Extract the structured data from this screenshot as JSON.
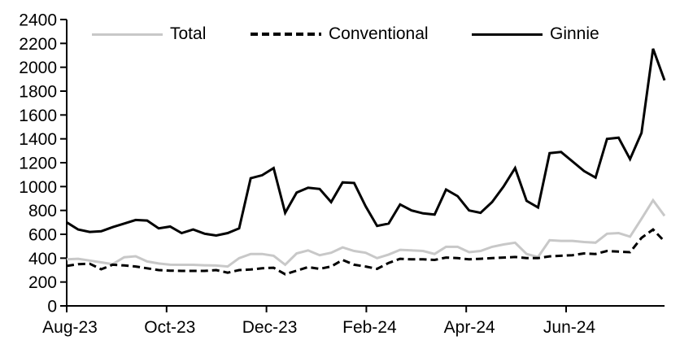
{
  "legend": [
    {
      "label": "Total",
      "swatch": "solid-gray",
      "color": "#c8c8c8",
      "dash": null
    },
    {
      "label": "Conventional",
      "swatch": "dashed-black",
      "color": "#000000",
      "dash": "9 5"
    },
    {
      "label": "Ginnie",
      "swatch": "solid-black",
      "color": "#000000",
      "dash": null
    }
  ],
  "chart_data": {
    "type": "line",
    "title": "",
    "xlabel": "",
    "ylabel": "",
    "ylim": [
      0,
      2400
    ],
    "y_ticks": [
      0,
      200,
      400,
      600,
      800,
      1000,
      1200,
      1400,
      1600,
      1800,
      2000,
      2200,
      2400
    ],
    "x_tick_labels": [
      "Aug-23",
      "Oct-23",
      "Dec-23",
      "Feb-24",
      "Apr-24",
      "Jun-24"
    ],
    "x_unit": "weekly observations, Aug-2023 through early Aug-2024 (53 points)",
    "grid": false,
    "legend_position": "top",
    "series": [
      {
        "name": "Total",
        "color": "#c8c8c8",
        "dash": null,
        "width": 3,
        "values": [
          390,
          395,
          380,
          365,
          350,
          408,
          416,
          372,
          355,
          345,
          344,
          344,
          340,
          338,
          330,
          400,
          435,
          435,
          420,
          345,
          440,
          465,
          425,
          445,
          490,
          460,
          445,
          400,
          430,
          470,
          465,
          460,
          435,
          495,
          495,
          450,
          460,
          495,
          515,
          530,
          435,
          410,
          550,
          545,
          545,
          535,
          530,
          605,
          610,
          580,
          730,
          885,
          755
        ]
      },
      {
        "name": "Conventional",
        "color": "#000000",
        "dash": "9 5",
        "width": 3,
        "values": [
          335,
          350,
          353,
          307,
          345,
          339,
          330,
          315,
          300,
          295,
          293,
          293,
          293,
          300,
          278,
          300,
          305,
          315,
          320,
          265,
          295,
          325,
          310,
          330,
          385,
          345,
          330,
          310,
          360,
          395,
          390,
          390,
          385,
          405,
          400,
          390,
          395,
          400,
          405,
          410,
          400,
          400,
          415,
          420,
          425,
          440,
          435,
          460,
          455,
          450,
          570,
          640,
          540
        ]
      },
      {
        "name": "Ginnie",
        "color": "#000000",
        "dash": null,
        "width": 3,
        "values": [
          700,
          640,
          620,
          625,
          660,
          690,
          720,
          715,
          650,
          665,
          610,
          640,
          605,
          590,
          610,
          650,
          1070,
          1095,
          1155,
          780,
          950,
          990,
          980,
          870,
          1035,
          1030,
          835,
          670,
          690,
          850,
          800,
          775,
          765,
          975,
          920,
          800,
          780,
          870,
          1000,
          1155,
          880,
          825,
          1280,
          1290,
          1210,
          1130,
          1075,
          1400,
          1410,
          1230,
          1450,
          2155,
          1890
        ]
      }
    ]
  }
}
